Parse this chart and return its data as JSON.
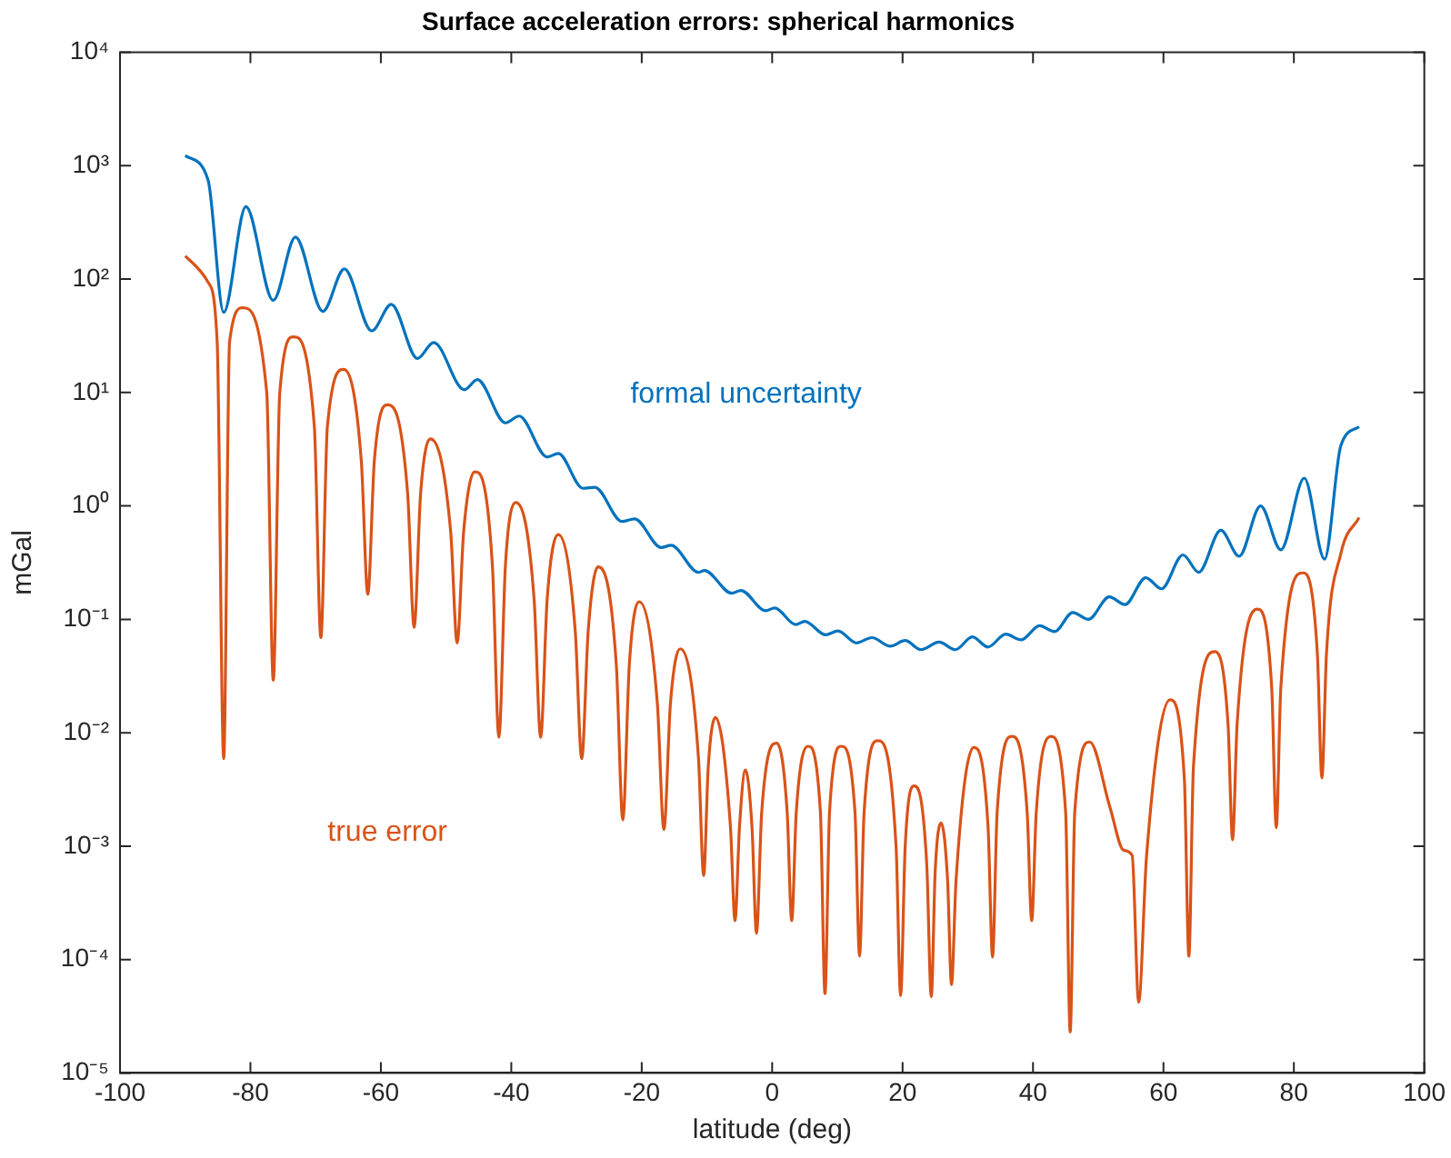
{
  "chart_data": {
    "type": "line",
    "title": "Surface acceleration errors: spherical harmonics",
    "xlabel": "latitude (deg)",
    "ylabel": "mGal",
    "log": "y",
    "grid": false,
    "legend": false,
    "marker": "none",
    "line_style": "solid",
    "xlim": [
      -100,
      100
    ],
    "xticks": [
      -100,
      -80,
      -60,
      -40,
      -20,
      0,
      20,
      40,
      60,
      80,
      100
    ],
    "ylim": [
      1e-05,
      10000
    ],
    "yticks": [
      {
        "value": 1e-05,
        "label": "10⁻⁵"
      },
      {
        "value": 0.0001,
        "label": "10⁻⁴"
      },
      {
        "value": 0.001,
        "label": "10⁻³"
      },
      {
        "value": 0.01,
        "label": "10⁻²"
      },
      {
        "value": 0.1,
        "label": "10⁻¹"
      },
      {
        "value": 1,
        "label": "10⁰"
      },
      {
        "value": 10,
        "label": "10¹"
      },
      {
        "value": 100,
        "label": "10²"
      },
      {
        "value": 1000,
        "label": "10³"
      },
      {
        "value": 10000,
        "label": "10⁴"
      }
    ],
    "series": [
      {
        "name": "formal uncertainty",
        "color": "#0072bd",
        "x": [
          -90,
          -86.5,
          -84.1,
          -80.7,
          -76.5,
          -73.1,
          -68.9,
          -65.6,
          -61.4,
          -58.4,
          -54.4,
          -51.9,
          -47.2,
          -45.2,
          -40.9,
          -38.8,
          -34.5,
          -32.8,
          -29,
          -27.2,
          -23,
          -21.1,
          -17,
          -15.5,
          -11.3,
          -10.4,
          -6.2,
          -4.8,
          -1,
          0.4,
          3.6,
          5,
          8.2,
          10.1,
          12.9,
          15.3,
          18.1,
          20.4,
          22.8,
          25.6,
          28.1,
          30.7,
          33.1,
          35.8,
          38.2,
          41,
          43.3,
          46.1,
          48.5,
          51.7,
          54.1,
          57.3,
          59.7,
          63,
          65.4,
          68.8,
          71.6,
          74.9,
          78,
          81.6,
          84.7,
          87.2,
          90
        ],
        "values": [
          1230,
          750,
          51,
          435,
          65,
          235,
          52,
          123,
          35,
          60,
          20,
          27.6,
          10.6,
          13,
          5.4,
          6.2,
          2.7,
          2.9,
          1.43,
          1.46,
          0.73,
          0.77,
          0.43,
          0.45,
          0.26,
          0.27,
          0.17,
          0.18,
          0.119,
          0.126,
          0.09,
          0.096,
          0.073,
          0.079,
          0.062,
          0.069,
          0.058,
          0.065,
          0.054,
          0.063,
          0.054,
          0.07,
          0.057,
          0.074,
          0.066,
          0.088,
          0.078,
          0.115,
          0.1,
          0.158,
          0.135,
          0.233,
          0.186,
          0.37,
          0.26,
          0.61,
          0.36,
          1,
          0.41,
          1.76,
          0.34,
          3.4,
          5
        ]
      },
      {
        "name": "true error",
        "color": "#d95319",
        "x": [
          -90,
          -86.5,
          -85.1,
          -84.1,
          -83.2,
          -81.2,
          -77.5,
          -76.5,
          -75.5,
          -73.4,
          -70.2,
          -69.2,
          -68.2,
          -65.7,
          -63,
          -62,
          -61,
          -58.9,
          -55.9,
          -54.9,
          -53.9,
          -52.4,
          -49.3,
          -48.3,
          -47.3,
          -45.6,
          -42.9,
          -41.9,
          -40.9,
          -39.3,
          -36.5,
          -35.5,
          -34.5,
          -32.8,
          -30.2,
          -29.2,
          -28.2,
          -26.7,
          -23.9,
          -22.9,
          -21.9,
          -20.4,
          -17.6,
          -16.6,
          -15.6,
          -14.1,
          -11.3,
          -10.5,
          -9.8,
          -8.7,
          -6.4,
          -5.7,
          -5,
          -4.1,
          -3.1,
          -2.4,
          -1.6,
          0.7,
          2.3,
          3,
          3.7,
          5.5,
          7.4,
          8.1,
          8.8,
          10.6,
          12.7,
          13.4,
          14.1,
          16.2,
          19,
          19.7,
          20.4,
          21.8,
          23.7,
          24.4,
          25,
          25.9,
          26.9,
          27.5,
          28.2,
          30.9,
          33.1,
          33.8,
          34.5,
          36.8,
          39.1,
          39.8,
          40.5,
          42.7,
          45,
          45.7,
          46.4,
          48.7,
          51.8,
          53.9,
          55.2,
          56.2,
          57.4,
          61,
          63.2,
          63.9,
          64.6,
          67.9,
          69.9,
          70.6,
          71.3,
          74.4,
          76.6,
          77.3,
          78,
          81.4,
          83.6,
          84.3,
          85,
          87.2,
          90
        ],
        "values": [
          160,
          94,
          28,
          0.0059,
          28,
          56,
          10,
          0.029,
          10,
          31,
          5,
          0.069,
          5,
          16,
          2.5,
          0.166,
          2.5,
          7.8,
          1.3,
          0.085,
          1.3,
          3.9,
          0.6,
          0.062,
          0.6,
          2,
          0.3,
          0.0091,
          0.3,
          1.07,
          0.15,
          0.0091,
          0.15,
          0.56,
          0.08,
          0.0059,
          0.08,
          0.29,
          0.04,
          0.0017,
          0.04,
          0.143,
          0.018,
          0.0014,
          0.018,
          0.055,
          0.006,
          0.00055,
          0.005,
          0.0136,
          0.0015,
          0.00022,
          0.0015,
          0.0047,
          0.0015,
          0.00017,
          0.002,
          0.0081,
          0.002,
          0.00022,
          0.002,
          0.0076,
          0.002,
          5e-05,
          0.002,
          0.0076,
          0.002,
          0.000107,
          0.002,
          0.0085,
          0.001,
          4.8e-05,
          0.001,
          0.0034,
          0.0007,
          4.7e-05,
          0.0006,
          0.0016,
          0.0005,
          6e-05,
          0.0005,
          0.0074,
          0.0015,
          0.000105,
          0.002,
          0.0093,
          0.002,
          0.00022,
          0.002,
          0.0093,
          0.002,
          2.3e-05,
          0.002,
          0.0083,
          0.0022,
          0.00092,
          0.00083,
          4.2e-05,
          0.0008,
          0.0195,
          0.004,
          0.000107,
          0.005,
          0.052,
          0.012,
          0.00114,
          0.012,
          0.123,
          0.025,
          0.00145,
          0.025,
          0.257,
          0.05,
          0.004,
          0.05,
          0.38,
          0.79
        ]
      }
    ]
  }
}
